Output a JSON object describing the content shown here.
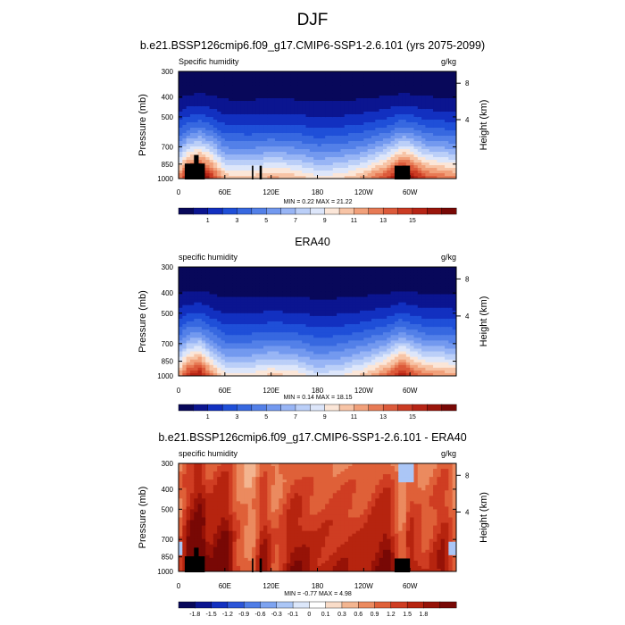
{
  "figure_title": "DJF",
  "chart_data": [
    {
      "type": "heatmap",
      "title": "b.e21.BSSP126cmip6.f09_g17.CMIP6-SSP1-2.6.101 (yrs 2075-2099)",
      "left_label": "Specific humidity",
      "right_label": "g/kg",
      "ylabel": "Pressure (mb)",
      "ylabel_right": "Height (km)",
      "xticks": [
        "0",
        "60E",
        "120E",
        "180",
        "120W",
        "60W"
      ],
      "yticks": [
        "300",
        "400",
        "500",
        "700",
        "850",
        "1000"
      ],
      "yticks_right": [
        "8",
        "4"
      ],
      "ylim": [
        1000,
        300
      ],
      "min": 0.22,
      "max": 21.22,
      "stats_text": "MIN =   0.22  MAX =  21.22",
      "colorbar_labels": [
        "1",
        "3",
        "5",
        "7",
        "9",
        "11",
        "13",
        "15"
      ],
      "profile": [
        {
          "lon": 0,
          "value": 13.5
        },
        {
          "lon": 12,
          "value": 17.5
        },
        {
          "lon": 27,
          "value": 19.5
        },
        {
          "lon": 40,
          "value": 17.0
        },
        {
          "lon": 60,
          "value": 12.0
        },
        {
          "lon": 90,
          "value": 11.5
        },
        {
          "lon": 120,
          "value": 12.5
        },
        {
          "lon": 150,
          "value": 12.0
        },
        {
          "lon": 180,
          "value": 10.5
        },
        {
          "lon": 210,
          "value": 11.0
        },
        {
          "lon": 240,
          "value": 12.5
        },
        {
          "lon": 270,
          "value": 15.5
        },
        {
          "lon": 290,
          "value": 19.5
        },
        {
          "lon": 300,
          "value": 18.5
        },
        {
          "lon": 320,
          "value": 15.0
        },
        {
          "lon": 345,
          "value": 14.0
        },
        {
          "lon": 360,
          "value": 13.5
        }
      ]
    },
    {
      "type": "heatmap",
      "title": "ERA40",
      "left_label": "specific humidity",
      "right_label": "g/kg",
      "ylabel": "Pressure (mb)",
      "ylabel_right": "Height (km)",
      "xticks": [
        "0",
        "60E",
        "120E",
        "180",
        "120W",
        "60W"
      ],
      "yticks": [
        "300",
        "400",
        "500",
        "700",
        "850",
        "1000"
      ],
      "yticks_right": [
        "8",
        "4"
      ],
      "ylim": [
        1000,
        300
      ],
      "min": 0.14,
      "max": 18.15,
      "stats_text": "MIN =   0.14  MAX =  18.15",
      "colorbar_labels": [
        "1",
        "3",
        "5",
        "7",
        "9",
        "11",
        "13",
        "15"
      ],
      "profile": [
        {
          "lon": 0,
          "value": 12.5
        },
        {
          "lon": 12,
          "value": 16.0
        },
        {
          "lon": 27,
          "value": 17.5
        },
        {
          "lon": 40,
          "value": 14.0
        },
        {
          "lon": 60,
          "value": 10.5
        },
        {
          "lon": 90,
          "value": 10.5
        },
        {
          "lon": 120,
          "value": 11.5
        },
        {
          "lon": 150,
          "value": 11.0
        },
        {
          "lon": 180,
          "value": 9.5
        },
        {
          "lon": 210,
          "value": 10.0
        },
        {
          "lon": 240,
          "value": 11.5
        },
        {
          "lon": 270,
          "value": 14.0
        },
        {
          "lon": 290,
          "value": 17.5
        },
        {
          "lon": 300,
          "value": 15.5
        },
        {
          "lon": 320,
          "value": 13.5
        },
        {
          "lon": 345,
          "value": 13.0
        },
        {
          "lon": 360,
          "value": 12.5
        }
      ]
    },
    {
      "type": "heatmap",
      "title": "b.e21.BSSP126cmip6.f09_g17.CMIP6-SSP1-2.6.101 - ERA40",
      "left_label": "specific humidity",
      "right_label": "g/kg",
      "ylabel": "Pressure (mb)",
      "ylabel_right": "Height (km)",
      "xticks": [
        "0",
        "60E",
        "120E",
        "180",
        "120W",
        "60W"
      ],
      "yticks": [
        "300",
        "400",
        "500",
        "700",
        "850",
        "1000"
      ],
      "yticks_right": [
        "8",
        "4"
      ],
      "ylim": [
        1000,
        300
      ],
      "min": -0.77,
      "max": 4.98,
      "stats_text": "MIN =  -0.77  MAX =   4.98",
      "colorbar_labels": [
        "-1.8",
        "-1.5",
        "-1.2",
        "-0.9",
        "-0.6",
        "-0.3",
        "-0.1",
        "0",
        "0.1",
        "0.3",
        "0.6",
        "0.9",
        "1.2",
        "1.5",
        "1.8"
      ],
      "diff_profile": [
        {
          "lon": 0,
          "value": 0.6
        },
        {
          "lon": 12,
          "value": 1.6
        },
        {
          "lon": 27,
          "value": 2.2
        },
        {
          "lon": 40,
          "value": 1.4
        },
        {
          "lon": 60,
          "value": 1.9
        },
        {
          "lon": 75,
          "value": 0.9
        },
        {
          "lon": 95,
          "value": 0.4
        },
        {
          "lon": 110,
          "value": 1.5
        },
        {
          "lon": 125,
          "value": 0.7
        },
        {
          "lon": 150,
          "value": 1.5
        },
        {
          "lon": 180,
          "value": 1.1
        },
        {
          "lon": 210,
          "value": 1.2
        },
        {
          "lon": 240,
          "value": 1.1
        },
        {
          "lon": 270,
          "value": 1.7
        },
        {
          "lon": 290,
          "value": 0.4
        },
        {
          "lon": 300,
          "value": 1.3
        },
        {
          "lon": 320,
          "value": 0.8
        },
        {
          "lon": 345,
          "value": 1.4
        },
        {
          "lon": 360,
          "value": 0.6
        }
      ]
    }
  ],
  "colors": {
    "seq": [
      "#08085a",
      "#0b1590",
      "#1230c0",
      "#1f4fd8",
      "#3768e0",
      "#5380e8",
      "#7399ef",
      "#98b5f5",
      "#bbcff8",
      "#dde6fa",
      "#fbe6d8",
      "#f7c4a6",
      "#f1a07a",
      "#e77a55",
      "#dc5a3a",
      "#cb3b23",
      "#b62415",
      "#9a150b",
      "#780805"
    ],
    "diff": [
      "#08085a",
      "#0b1590",
      "#1230c0",
      "#2c55d8",
      "#4f7de6",
      "#7da3f0",
      "#abc6f6",
      "#dce7fa",
      "#ffffff",
      "#f9dcc8",
      "#f3b590",
      "#eb8a5f",
      "#df6038",
      "#cf3d22",
      "#b6240f",
      "#961207",
      "#780805"
    ],
    "terrain": "#000000"
  }
}
